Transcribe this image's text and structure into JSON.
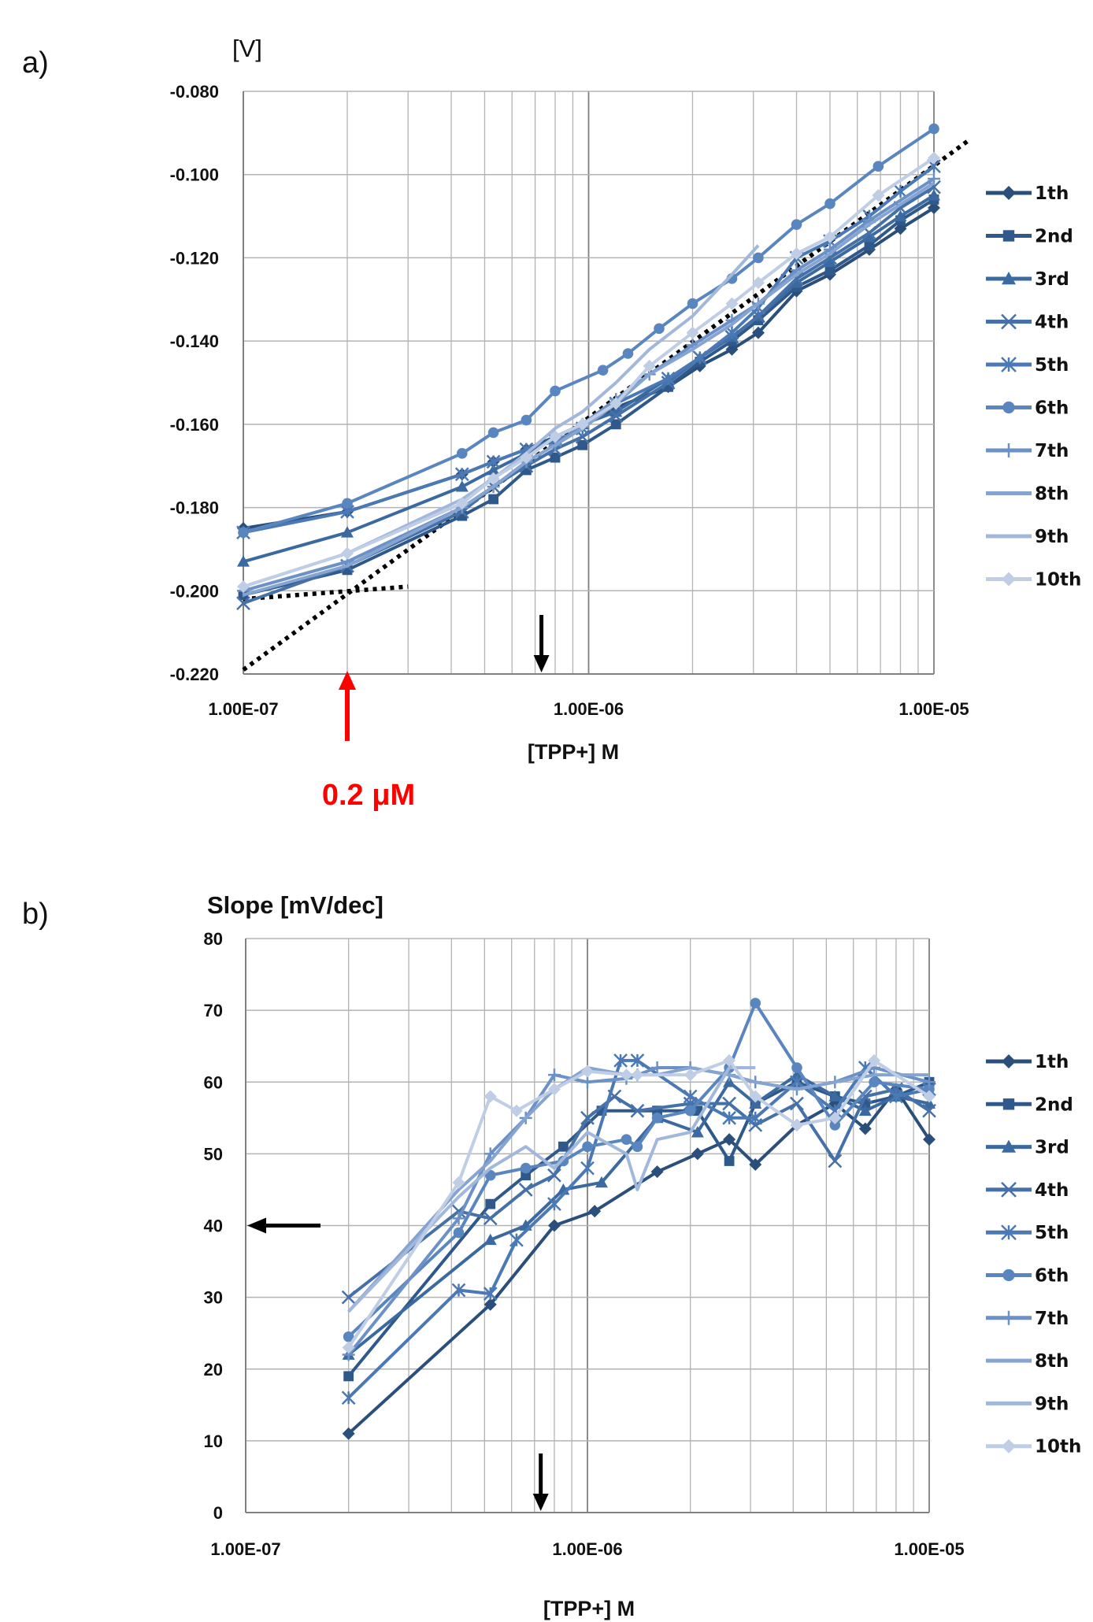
{
  "colors": {
    "series": [
      "#2a4f7b",
      "#30598b",
      "#3a6a9f",
      "#4671a8",
      "#4a79b6",
      "#5a86c0",
      "#6b91c6",
      "#86a4d1",
      "#a1b8dc",
      "#bfcde5"
    ],
    "grid": "#b3b3b3",
    "axis": "#808080",
    "dotted_trend": "#000000",
    "arrow_black": "#000000",
    "arrow_red": "#ff0000"
  },
  "legend_entries": [
    "1th",
    "2nd",
    "3rd",
    "4th",
    "5th",
    "6th",
    "7th",
    "8th",
    "9th",
    "10th"
  ],
  "markers": [
    "diamond",
    "square",
    "triangle",
    "x",
    "star",
    "circle",
    "plus",
    "none",
    "none",
    "diamond"
  ],
  "chart_data": [
    {
      "panel_label": "a)",
      "type": "line",
      "y_unit_label": "[V]",
      "xlabel": "[TPP+] M",
      "x_scale": "log",
      "xlim": [
        1e-07,
        1e-05
      ],
      "ylim": [
        -0.22,
        -0.08
      ],
      "x_tick_labels": [
        "1.00E-07",
        "1.00E-06",
        "1.00E-05"
      ],
      "y_tick_labels": [
        "-0.080",
        "-0.100",
        "-0.120",
        "-0.140",
        "-0.160",
        "-0.180",
        "-0.200",
        "-0.220"
      ],
      "grid": true,
      "legend_position": "right",
      "annotation": "0.2 μM",
      "series": [
        {
          "name": "1th",
          "x": [
            1e-07,
            2e-07,
            4.3e-07,
            5.3e-07,
            6.6e-07,
            8e-07,
            9.6e-07,
            1.2e-06,
            1.7e-06,
            2.1e-06,
            2.6e-06,
            3.1e-06,
            4e-06,
            5e-06,
            6.5e-06,
            8e-06,
            1e-05
          ],
          "y": [
            -0.185,
            -0.181,
            -0.172,
            -0.169,
            -0.166,
            -0.163,
            -0.16,
            -0.156,
            -0.151,
            -0.146,
            -0.142,
            -0.138,
            -0.128,
            -0.124,
            -0.118,
            -0.113,
            -0.108
          ]
        },
        {
          "name": "2nd",
          "x": [
            1e-07,
            2e-07,
            4.3e-07,
            5.3e-07,
            6.6e-07,
            8e-07,
            9.6e-07,
            1.2e-06,
            1.7e-06,
            2.1e-06,
            2.6e-06,
            3.1e-06,
            4e-06,
            5e-06,
            6.5e-06,
            8e-06,
            1e-05
          ],
          "y": [
            -0.201,
            -0.195,
            -0.182,
            -0.178,
            -0.171,
            -0.168,
            -0.165,
            -0.16,
            -0.151,
            -0.145,
            -0.14,
            -0.135,
            -0.127,
            -0.123,
            -0.117,
            -0.111,
            -0.106
          ]
        },
        {
          "name": "3rd",
          "x": [
            1e-07,
            2e-07,
            4.3e-07,
            5.3e-07,
            6.6e-07,
            8e-07,
            9.6e-07,
            1.2e-06,
            1.7e-06,
            2.1e-06,
            2.6e-06,
            3.1e-06,
            4e-06,
            5e-06,
            6.5e-06,
            8e-06,
            1e-05
          ],
          "y": [
            -0.193,
            -0.186,
            -0.175,
            -0.171,
            -0.167,
            -0.163,
            -0.16,
            -0.157,
            -0.149,
            -0.144,
            -0.139,
            -0.134,
            -0.126,
            -0.121,
            -0.115,
            -0.11,
            -0.105
          ]
        },
        {
          "name": "4th",
          "x": [
            1e-07,
            2e-07,
            4.3e-07,
            5.3e-07,
            6.6e-07,
            8e-07,
            9.6e-07,
            1.2e-06,
            1.7e-06,
            2.1e-06,
            2.6e-06,
            3.1e-06,
            4e-06,
            5e-06,
            6.5e-06,
            8e-06,
            1e-05
          ],
          "y": [
            -0.203,
            -0.194,
            -0.181,
            -0.175,
            -0.17,
            -0.166,
            -0.163,
            -0.158,
            -0.15,
            -0.144,
            -0.139,
            -0.134,
            -0.125,
            -0.12,
            -0.114,
            -0.108,
            -0.103
          ]
        },
        {
          "name": "5th",
          "x": [
            1e-07,
            2e-07,
            4.3e-07,
            5.3e-07,
            6.6e-07,
            8e-07,
            9.6e-07,
            1.2e-06,
            1.7e-06,
            2.1e-06,
            2.6e-06,
            3.1e-06,
            4e-06,
            5e-06,
            6.5e-06,
            8e-06,
            1e-05
          ],
          "y": [
            -0.186,
            -0.181,
            -0.172,
            -0.169,
            -0.166,
            -0.164,
            -0.161,
            -0.155,
            -0.149,
            -0.144,
            -0.138,
            -0.132,
            -0.12,
            -0.116,
            -0.11,
            -0.104,
            -0.098
          ]
        },
        {
          "name": "6th",
          "x": [
            1e-07,
            2e-07,
            4.3e-07,
            5.3e-07,
            6.6e-07,
            8e-07,
            1.1e-06,
            1.3e-06,
            1.6e-06,
            2e-06,
            2.6e-06,
            3.1e-06,
            4e-06,
            5e-06,
            6.9e-06,
            1e-05
          ],
          "y": [
            -0.186,
            -0.179,
            -0.167,
            -0.162,
            -0.159,
            -0.152,
            -0.147,
            -0.143,
            -0.137,
            -0.131,
            -0.125,
            -0.12,
            -0.112,
            -0.107,
            -0.098,
            -0.089
          ]
        },
        {
          "name": "7th",
          "x": [
            1e-07,
            2e-07,
            4.3e-07,
            5.3e-07,
            6.6e-07,
            8e-07,
            9.6e-07,
            1.2e-06,
            1.5e-06,
            2e-06,
            2.6e-06,
            3.1e-06,
            4e-06,
            5e-06,
            6.5e-06,
            1e-05
          ],
          "y": [
            -0.2,
            -0.193,
            -0.18,
            -0.175,
            -0.169,
            -0.165,
            -0.16,
            -0.154,
            -0.148,
            -0.141,
            -0.135,
            -0.131,
            -0.123,
            -0.118,
            -0.111,
            -0.101
          ]
        },
        {
          "name": "8th",
          "x": [
            1e-07,
            2e-07,
            4.3e-07,
            5.3e-07,
            6.6e-07,
            8e-07,
            9.6e-07,
            1.2e-06,
            1.5e-06,
            2e-06,
            2.6e-06,
            3.1e-06,
            4e-06,
            5e-06,
            6.5e-06,
            1e-05
          ],
          "y": [
            -0.201,
            -0.194,
            -0.18,
            -0.175,
            -0.169,
            -0.165,
            -0.161,
            -0.155,
            -0.148,
            -0.142,
            -0.136,
            -0.131,
            -0.124,
            -0.119,
            -0.112,
            -0.102
          ]
        },
        {
          "name": "9th",
          "x": [
            1e-07,
            2e-07,
            4.3e-07,
            5.3e-07,
            6.6e-07,
            8e-07,
            9.6e-07,
            1.2e-06,
            1.5e-06,
            2e-06,
            2.6e-06,
            3.1e-06
          ],
          "y": [
            -0.199,
            -0.191,
            -0.178,
            -0.173,
            -0.167,
            -0.161,
            -0.157,
            -0.15,
            -0.142,
            -0.134,
            -0.124,
            -0.117
          ]
        },
        {
          "name": "10th",
          "x": [
            1e-07,
            2e-07,
            4.3e-07,
            5.3e-07,
            6.6e-07,
            8e-07,
            9.6e-07,
            1.2e-06,
            1.5e-06,
            2e-06,
            2.6e-06,
            3.1e-06,
            4e-06,
            5e-06,
            6.9e-06,
            1e-05
          ],
          "y": [
            -0.199,
            -0.191,
            -0.179,
            -0.173,
            -0.168,
            -0.163,
            -0.16,
            -0.155,
            -0.146,
            -0.138,
            -0.131,
            -0.126,
            -0.119,
            -0.115,
            -0.105,
            -0.096
          ]
        }
      ],
      "trend_lines": [
        {
          "x": [
            1e-07,
            1.25e-05
          ],
          "y": [
            -0.219,
            -0.092
          ]
        },
        {
          "x": [
            1e-07,
            3e-07
          ],
          "y": [
            -0.202,
            -0.199
          ]
        }
      ],
      "arrows": [
        {
          "color": "black",
          "direction": "down",
          "x": 7.3e-07
        },
        {
          "color": "red",
          "direction": "up",
          "x": 2e-07
        }
      ]
    },
    {
      "panel_label": "b)",
      "type": "line",
      "ylabel": "Slope [mV/dec]",
      "xlabel": "[TPP+] M",
      "x_scale": "log",
      "xlim": [
        1e-07,
        1e-05
      ],
      "ylim": [
        0,
        80
      ],
      "x_tick_labels": [
        "1.00E-07",
        "1.00E-06",
        "1.00E-05"
      ],
      "y_tick_labels": [
        "80",
        "70",
        "60",
        "50",
        "40",
        "30",
        "20",
        "10",
        "0"
      ],
      "grid": true,
      "legend_position": "right",
      "series": [
        {
          "name": "1th",
          "x": [
            2e-07,
            5.2e-07,
            8e-07,
            1.05e-06,
            1.6e-06,
            2.1e-06,
            2.6e-06,
            3.1e-06,
            4.1e-06,
            5.3e-06,
            6.5e-06,
            8e-06,
            1e-05
          ],
          "y": [
            11,
            29,
            40,
            42,
            47.5,
            50,
            52,
            48.5,
            54,
            57,
            53.5,
            59,
            52
          ]
        },
        {
          "name": "2nd",
          "x": [
            2e-07,
            5.2e-07,
            6.6e-07,
            8.5e-07,
            1.1e-06,
            1.6e-06,
            2.1e-06,
            2.6e-06,
            3.1e-06,
            4.1e-06,
            5.3e-06,
            6.5e-06,
            8e-06,
            1e-05
          ],
          "y": [
            19,
            43,
            47,
            51,
            56,
            56,
            56,
            49,
            57,
            60,
            58,
            57,
            58,
            60
          ]
        },
        {
          "name": "3rd",
          "x": [
            2e-07,
            5.2e-07,
            6.6e-07,
            8.5e-07,
            1.1e-06,
            1.6e-06,
            2.1e-06,
            2.6e-06,
            3.1e-06,
            4.1e-06,
            5.3e-06,
            6.5e-06,
            8e-06,
            1e-05
          ],
          "y": [
            22,
            38,
            40,
            45,
            46,
            55,
            53,
            60,
            57,
            61,
            58,
            56,
            58,
            57
          ]
        },
        {
          "name": "4th",
          "x": [
            2e-07,
            4.2e-07,
            5.2e-07,
            6.6e-07,
            8e-07,
            1e-06,
            1.2e-06,
            1.4e-06,
            2e-06,
            2.6e-06,
            3.1e-06,
            4.1e-06,
            5.3e-06,
            6.5e-06,
            8e-06,
            1e-05
          ],
          "y": [
            30,
            42,
            41,
            45,
            47,
            55,
            58,
            56,
            57,
            57,
            54,
            57,
            49,
            58,
            59,
            56
          ]
        },
        {
          "name": "5th",
          "x": [
            2e-07,
            4.2e-07,
            5.2e-07,
            6.2e-07,
            8e-07,
            1e-06,
            1.25e-06,
            1.4e-06,
            2e-06,
            2.6e-06,
            3.1e-06,
            4.1e-06,
            5.3e-06,
            6.5e-06,
            8e-06,
            1e-05
          ],
          "y": [
            16,
            31,
            30.5,
            38,
            43,
            48,
            63,
            63,
            58,
            55,
            55,
            60,
            56,
            62,
            58,
            59
          ]
        },
        {
          "name": "6th",
          "x": [
            2e-07,
            4.2e-07,
            5.2e-07,
            6.6e-07,
            8.5e-07,
            1e-06,
            1.3e-06,
            1.4e-06,
            1.6e-06,
            2e-06,
            2.6e-06,
            3.1e-06,
            4.1e-06,
            5.3e-06,
            6.9e-06,
            1e-05
          ],
          "y": [
            24.5,
            39,
            47,
            48,
            49,
            51,
            52,
            51,
            55,
            56,
            62,
            71,
            62,
            54,
            60,
            59
          ]
        },
        {
          "name": "7th",
          "x": [
            2e-07,
            4.2e-07,
            5.2e-07,
            6.6e-07,
            8e-07,
            1e-06,
            1.3e-06,
            1.4e-06,
            1.6e-06,
            2e-06,
            2.6e-06,
            3.1e-06,
            4.1e-06,
            5.3e-06,
            6.9e-06,
            1e-05
          ],
          "y": [
            22,
            41,
            50,
            55,
            61,
            60,
            60.5,
            61,
            62,
            62,
            61,
            60,
            59,
            60,
            62,
            60
          ]
        },
        {
          "name": "8th",
          "x": [
            2e-07,
            4.2e-07,
            5.2e-07,
            6.6e-07,
            8e-07,
            1e-06,
            1.3e-06,
            1.4e-06,
            1.6e-06,
            2e-06,
            2.6e-06,
            3.1e-06,
            4.1e-06,
            5.3e-06,
            6.9e-06,
            1e-05
          ],
          "y": [
            28,
            45,
            49,
            55,
            59,
            62,
            61,
            61,
            61,
            62,
            61,
            60,
            59,
            60,
            61,
            61
          ]
        },
        {
          "name": "9th",
          "x": [
            2e-07,
            4.2e-07,
            5.2e-07,
            6.6e-07,
            8e-07,
            1e-06,
            1.3e-06,
            1.4e-06,
            1.6e-06,
            2e-06,
            2.6e-06,
            3.1e-06
          ],
          "y": [
            28,
            44,
            48,
            51,
            48,
            53,
            50,
            45,
            52,
            53,
            62,
            62
          ]
        },
        {
          "name": "10th",
          "x": [
            2e-07,
            4.2e-07,
            5.2e-07,
            6.2e-07,
            8e-07,
            1e-06,
            1.3e-06,
            1.4e-06,
            2e-06,
            2.6e-06,
            3.1e-06,
            4.1e-06,
            5.3e-06,
            6.9e-06,
            1e-05
          ],
          "y": [
            23,
            46,
            58,
            56,
            59,
            61.5,
            61,
            61,
            61,
            63,
            58,
            54,
            55,
            63,
            58
          ]
        }
      ],
      "arrows": [
        {
          "color": "black",
          "direction": "down",
          "x": 7.3e-07
        },
        {
          "color": "black",
          "direction": "left",
          "y": 40
        }
      ]
    }
  ]
}
